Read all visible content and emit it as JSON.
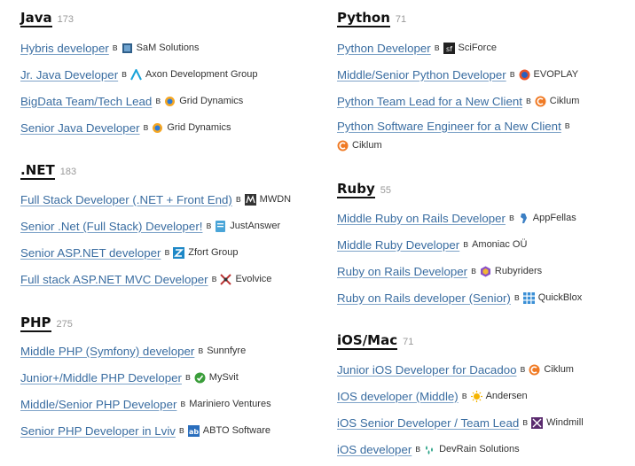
{
  "left": [
    {
      "title": "Java",
      "count": "173",
      "jobs": [
        {
          "title": "Hybris developer",
          "company": "SaM Solutions",
          "logo": "sam-logo-icon"
        },
        {
          "title": "Jr. Java Developer",
          "company": "Axon Development Group",
          "logo": "axon-logo-icon"
        },
        {
          "title": "BigData Team/Tech Lead",
          "company": "Grid Dynamics",
          "logo": "grid-dynamics-logo-icon"
        },
        {
          "title": "Senior Java Developer",
          "company": "Grid Dynamics",
          "logo": "grid-dynamics-logo-icon"
        }
      ]
    },
    {
      "title": ".NET",
      "count": "183",
      "jobs": [
        {
          "title": "Full Stack Developer (.NET + Front End)",
          "company": "MWDN",
          "logo": "mwdn-logo-icon"
        },
        {
          "title": "Senior .Net (Full Stack) Developer!",
          "company": "JustAnswer",
          "logo": "justanswer-logo-icon"
        },
        {
          "title": "Senior ASP.NET developer",
          "company": "Zfort Group",
          "logo": "zfort-logo-icon"
        },
        {
          "title": "Full stack ASP.NET MVC Developer",
          "company": "Evolvice",
          "logo": "evolvice-logo-icon"
        }
      ]
    },
    {
      "title": "PHP",
      "count": "275",
      "jobs": [
        {
          "title": "Middle PHP (Symfony) developer",
          "company": "Sunnfyre",
          "logo": ""
        },
        {
          "title": "Junior+/Middle PHP Developer",
          "company": "MySvit",
          "logo": "mysvit-logo-icon"
        },
        {
          "title": "Middle/Senior PHP Developer",
          "company": "Mariniero Ventures",
          "logo": ""
        },
        {
          "title": "Senior PHP Developer in Lviv",
          "company": "ABTO Software",
          "logo": "abto-logo-icon"
        }
      ]
    }
  ],
  "right": [
    {
      "title": "Python",
      "count": "71",
      "jobs": [
        {
          "title": "Python Developer",
          "company": "SciForce",
          "logo": "sciforce-logo-icon"
        },
        {
          "title": "Middle/Senior Python Developer",
          "company": "EVOPLAY",
          "logo": "evoplay-logo-icon"
        },
        {
          "title": "Python Team Lead for a New Client",
          "company": "Ciklum",
          "logo": "ciklum-logo-icon"
        },
        {
          "title": "Python Software Engineer for a New Client",
          "company": "Ciklum",
          "logo": "ciklum-logo-icon",
          "wrap": true
        }
      ]
    },
    {
      "title": "Ruby",
      "count": "55",
      "jobs": [
        {
          "title": "Middle Ruby on Rails Developer",
          "company": "AppFellas",
          "logo": "appfellas-logo-icon"
        },
        {
          "title": "Middle Ruby Developer",
          "company": "Amoniac OÜ",
          "logo": ""
        },
        {
          "title": "Ruby on Rails Developer",
          "company": "Rubyriders",
          "logo": "rubyriders-logo-icon"
        },
        {
          "title": "Ruby on Rails developer (Senior)",
          "company": "QuickBlox",
          "logo": "quickblox-logo-icon"
        }
      ]
    },
    {
      "title": "iOS/Mac",
      "count": "71",
      "jobs": [
        {
          "title": "Junior iOS Developer for Dacadoo",
          "company": "Ciklum",
          "logo": "ciklum-logo-icon"
        },
        {
          "title": "IOS developer (Middle)",
          "company": "Andersen",
          "logo": "andersen-logo-icon"
        },
        {
          "title": "iOS Senior Developer / Team Lead",
          "company": "Windmill",
          "logo": "windmill-logo-icon"
        },
        {
          "title": "iOS developer",
          "company": "DevRain Solutions",
          "logo": "devrain-logo-icon"
        }
      ]
    }
  ],
  "preposition": "в"
}
